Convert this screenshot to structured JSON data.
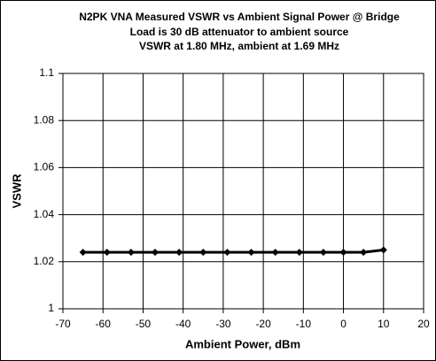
{
  "chart_data": {
    "type": "line",
    "title": [
      "N2PK VNA Measured VSWR vs Ambient Signal Power @ Bridge",
      "Load is 30 dB attenuator to ambient source",
      "VSWR at 1.80 MHz, ambient at 1.69 MHz"
    ],
    "x_label": "Ambient Power, dBm",
    "y_label": "VSWR",
    "x": [
      -65,
      -59,
      -53,
      -47,
      -41,
      -35,
      -29,
      -23,
      -17,
      -11,
      -5,
      0,
      5,
      10
    ],
    "series": [
      {
        "color": "#000000",
        "values": [
          1.024,
          1.024,
          1.024,
          1.024,
          1.024,
          1.024,
          1.024,
          1.024,
          1.024,
          1.024,
          1.024,
          1.024,
          1.024,
          1.025
        ]
      }
    ],
    "xlim": [
      -70,
      20
    ],
    "xticks": [
      -70,
      -60,
      -50,
      -40,
      -30,
      -20,
      -10,
      0,
      10,
      20
    ],
    "ylim": [
      1,
      1.1
    ],
    "yticks": [
      1,
      1.02,
      1.04,
      1.06,
      1.08,
      1.1
    ],
    "grid": true
  }
}
